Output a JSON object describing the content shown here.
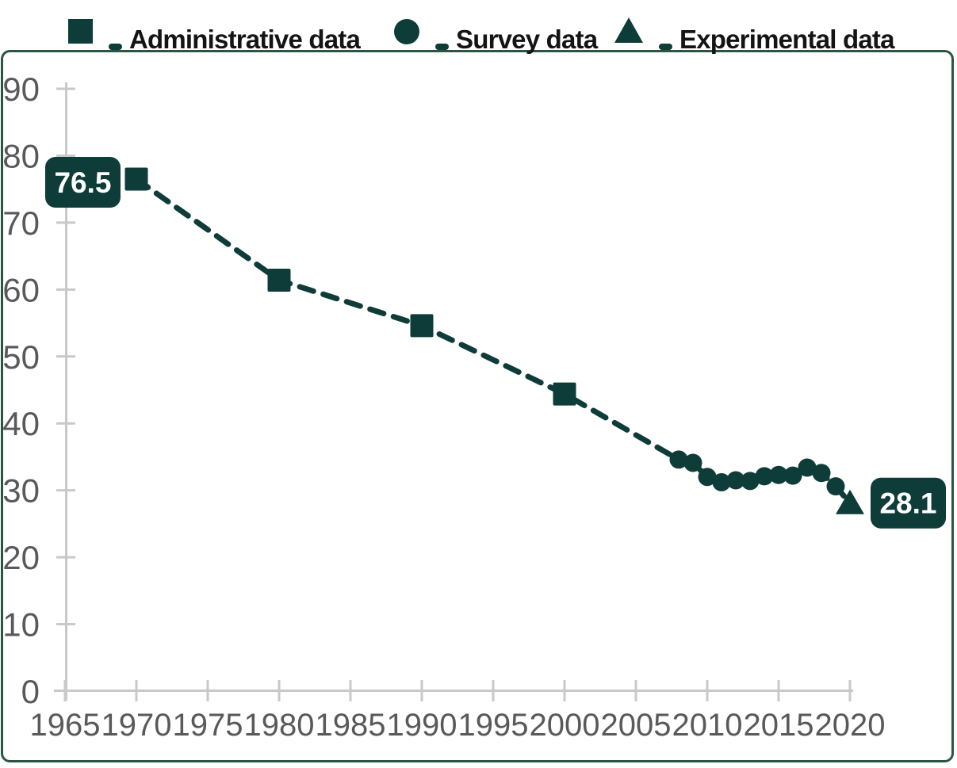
{
  "colors": {
    "accent": "#0e3c38",
    "frame_border": "#2b5540",
    "axis_line": "#c9c9c9",
    "tick_label": "#595959",
    "legend_text": "#141414",
    "callout_bg": "#0e3c38",
    "callout_text": "#ffffff",
    "background": "#ffffff"
  },
  "legend": {
    "separator": "-",
    "items": [
      {
        "marker": "square",
        "label": "Administrative data"
      },
      {
        "marker": "circle",
        "label": "Survey data"
      },
      {
        "marker": "triangle",
        "label": "Experimental data"
      }
    ]
  },
  "chart_data": {
    "type": "line",
    "title": "",
    "xlabel": "",
    "ylabel": "",
    "xlim": [
      1965,
      2021
    ],
    "ylim": [
      0,
      90
    ],
    "x_ticks": [
      1965,
      1970,
      1975,
      1980,
      1985,
      1990,
      1995,
      2000,
      2005,
      2010,
      2015,
      2020
    ],
    "y_ticks": [
      0,
      10,
      20,
      30,
      40,
      50,
      60,
      70,
      80,
      90
    ],
    "grid": false,
    "line_style": "dashed",
    "legend_position": "top",
    "series": [
      {
        "name": "Administrative data",
        "marker": "square",
        "points": [
          [
            1970,
            76.5
          ],
          [
            1980,
            61.4
          ],
          [
            1990,
            54.6
          ],
          [
            2000,
            44.4
          ]
        ]
      },
      {
        "name": "Survey data",
        "marker": "circle",
        "points": [
          [
            2008,
            34.6
          ],
          [
            2009,
            34.1
          ],
          [
            2010,
            32.0
          ],
          [
            2011,
            31.2
          ],
          [
            2012,
            31.5
          ],
          [
            2013,
            31.4
          ],
          [
            2014,
            32.1
          ],
          [
            2015,
            32.3
          ],
          [
            2016,
            32.2
          ],
          [
            2017,
            33.4
          ],
          [
            2018,
            32.6
          ],
          [
            2019,
            30.6
          ]
        ]
      },
      {
        "name": "Experimental data",
        "marker": "triangle",
        "points": [
          [
            2020,
            28.1
          ]
        ]
      }
    ],
    "annotations": [
      {
        "text": "76.5",
        "x": 1970,
        "y": 76.5,
        "position": "left"
      },
      {
        "text": "28.1",
        "x": 2020,
        "y": 28.1,
        "position": "right"
      }
    ]
  }
}
